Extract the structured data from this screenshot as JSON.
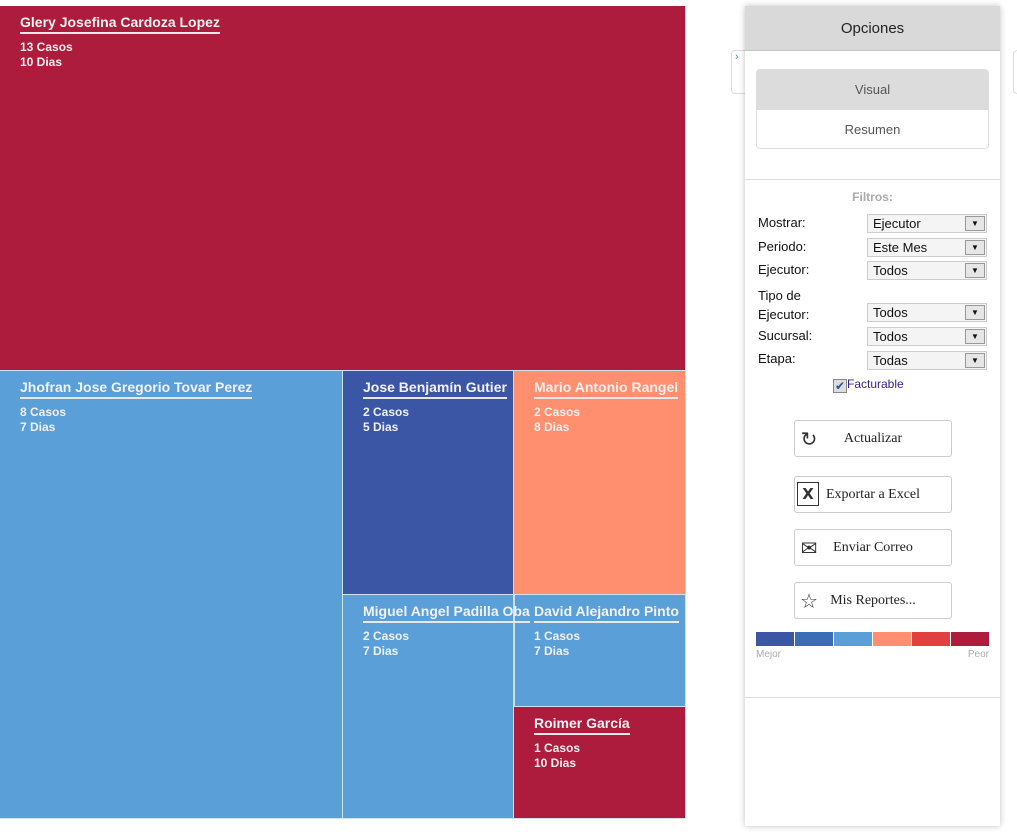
{
  "treemap": [
    {
      "name": "Glery Josefina Cardoza Lopez",
      "casos": "13 Casos",
      "dias": "10 Dias",
      "color": "#ad1c3c"
    },
    {
      "name": "Jhofran Jose Gregorio Tovar Perez",
      "casos": "8 Casos",
      "dias": "7 Dias",
      "color": "#5a9fd8"
    },
    {
      "name": "Jose Benjamín Gutier",
      "casos": "2 Casos",
      "dias": "5 Dias",
      "color": "#3b56a5"
    },
    {
      "name": "Mario Antonio Rangel",
      "casos": "2 Casos",
      "dias": "8 Dias",
      "color": "#ff8f6e"
    },
    {
      "name": "Miguel Angel Padilla Oba",
      "casos": "2 Casos",
      "dias": "7 Dias",
      "color": "#5a9fd8"
    },
    {
      "name": "David Alejandro Pinto",
      "casos": "1 Casos",
      "dias": "7 Dias",
      "color": "#5a9fd8"
    },
    {
      "name": "Roimer García",
      "casos": "1 Casos",
      "dias": "10 Dias",
      "color": "#ad1c3c"
    }
  ],
  "panel": {
    "title": "Opciones",
    "tabs": [
      "Visual",
      "Resumen"
    ],
    "filters_title": "Filtros:",
    "filters": [
      {
        "label": "Mostrar:",
        "value": "Ejecutor"
      },
      {
        "label": "Periodo:",
        "value": "Este Mes"
      },
      {
        "label": "Ejecutor:",
        "value": "Todos"
      },
      {
        "label": "Tipo de Ejecutor:",
        "value": "Todos"
      },
      {
        "label": "Sucursal:",
        "value": "Todos"
      },
      {
        "label": "Etapa:",
        "value": "Todas"
      }
    ],
    "facturable": {
      "label": "Facturable",
      "checked": true
    },
    "buttons": [
      {
        "label": "Actualizar",
        "icon": "refresh-icon"
      },
      {
        "label": "Exportar a Excel",
        "icon": "excel-icon"
      },
      {
        "label": "Enviar Correo",
        "icon": "mail-icon"
      },
      {
        "label": "Mis Reportes...",
        "icon": "star-icon"
      }
    ],
    "scale": {
      "colors": [
        "#3b56a5",
        "#3a6db5",
        "#5a9fd8",
        "#ff8f6e",
        "#e04040",
        "#ad1c3c"
      ],
      "low": "Mejor",
      "high": "Peor"
    }
  }
}
